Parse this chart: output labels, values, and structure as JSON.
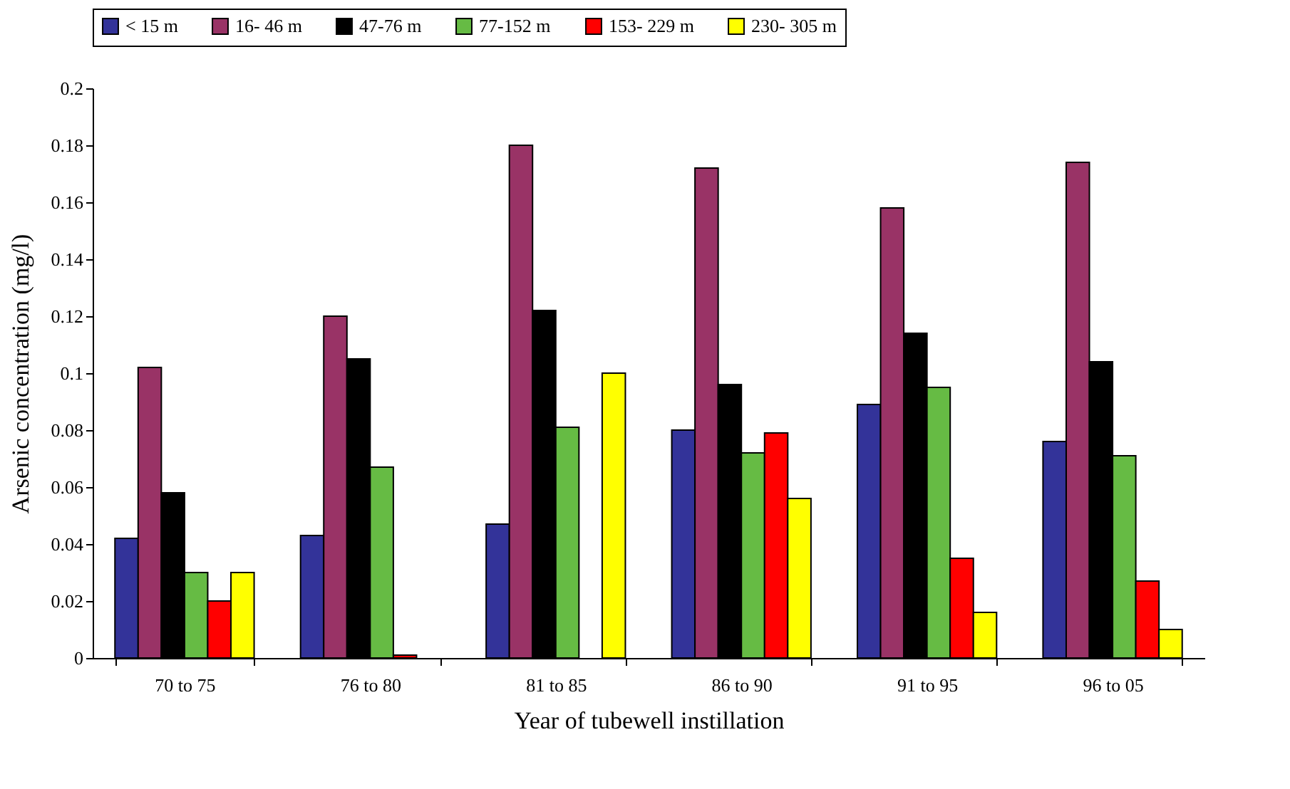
{
  "chart_data": {
    "type": "bar",
    "xlabel": "Year of tubewell instillation",
    "ylabel": "Arsenic concentration (mg/l)",
    "categories": [
      "70 to 75",
      "76 to 80",
      "81 to 85",
      "86 to 90",
      "91 to 95",
      "96 to 05"
    ],
    "series": [
      {
        "name": "< 15 m",
        "color": "#333399",
        "values": [
          0.042,
          0.043,
          0.047,
          0.08,
          0.089,
          0.076
        ]
      },
      {
        "name": "16- 46 m",
        "color": "#993366",
        "values": [
          0.102,
          0.12,
          0.18,
          0.172,
          0.158,
          0.174
        ]
      },
      {
        "name": "47-76 m",
        "color": "#000000",
        "values": [
          0.058,
          0.105,
          0.122,
          0.096,
          0.114,
          0.104
        ]
      },
      {
        "name": "77-152 m",
        "color": "#66bb44",
        "values": [
          0.03,
          0.067,
          0.081,
          0.072,
          0.095,
          0.071
        ]
      },
      {
        "name": "153- 229 m",
        "color": "#ff0000",
        "values": [
          0.02,
          0.001,
          null,
          0.079,
          0.035,
          0.027
        ]
      },
      {
        "name": "230- 305 m",
        "color": "#ffff00",
        "values": [
          0.03,
          null,
          0.1,
          0.056,
          0.016,
          0.01
        ]
      }
    ],
    "ylim": [
      0,
      0.2
    ],
    "yticks": [
      0,
      0.02,
      0.04,
      0.06,
      0.08,
      0.1,
      0.12,
      0.14,
      0.16,
      0.18,
      0.2
    ],
    "grid": false,
    "legend": "top"
  }
}
